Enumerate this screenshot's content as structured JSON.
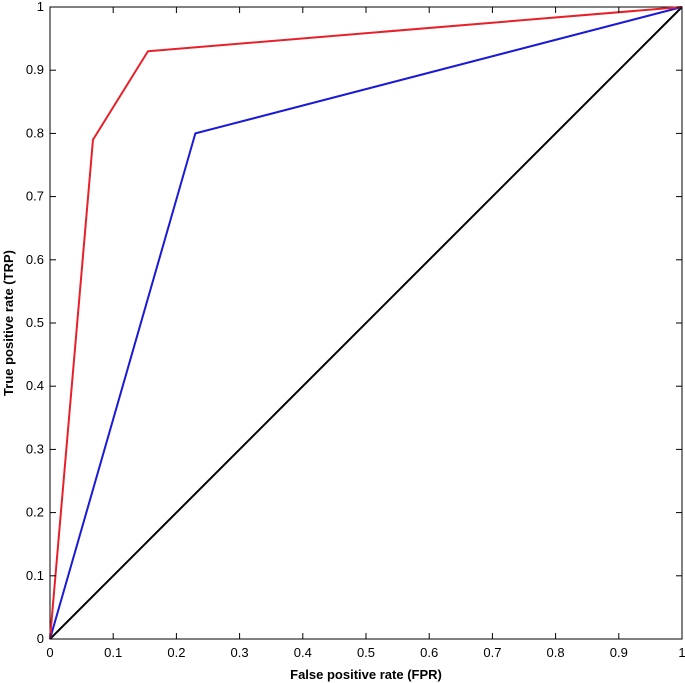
{
  "chart_data": {
    "type": "line",
    "title": "",
    "xlabel": "False positive rate (FPR)",
    "ylabel": "True positive rate (TRP)",
    "xlim": [
      0,
      1
    ],
    "ylim": [
      0,
      1
    ],
    "xticks": [
      "0",
      "0.1",
      "0.2",
      "0.3",
      "0.4",
      "0.5",
      "0.6",
      "0.7",
      "0.8",
      "0.9",
      "1"
    ],
    "yticks": [
      "0",
      "0.1",
      "0.2",
      "0.3",
      "0.4",
      "0.5",
      "0.6",
      "0.7",
      "0.8",
      "0.9",
      "1"
    ],
    "grid": false,
    "legend": "none",
    "series": [
      {
        "color": "#e8202a",
        "x": [
          0,
          0.068,
          0.155,
          1
        ],
        "y": [
          0,
          0.79,
          0.93,
          1
        ]
      },
      {
        "color": "#1a1ad6",
        "x": [
          0,
          0.23,
          1
        ],
        "y": [
          0,
          0.8,
          1
        ]
      },
      {
        "color": "#000000",
        "x": [
          0,
          1
        ],
        "y": [
          0,
          1
        ]
      }
    ]
  }
}
